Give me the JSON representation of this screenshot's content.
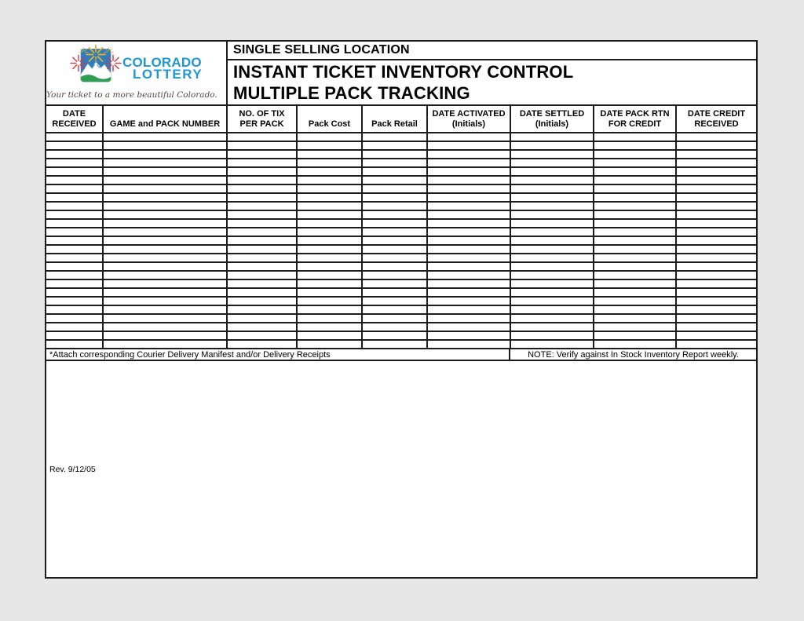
{
  "page": {
    "background_color": "#e7e7e7",
    "sheet_color": "#ffffff",
    "line_color": "#1c1c1c"
  },
  "logo": {
    "icon": "fireworks-mountain-icon",
    "wordmark_line1": "COLORADO",
    "wordmark_line2": "LOTTERY",
    "tagline": "Your ticket to a more beautiful Colorado.",
    "colors": {
      "wordmark_blue": "#1e97d4",
      "sky_blue": "#2d7dc1",
      "ground_green": "#2f9e53",
      "burst_yellow": "#f0ae1c",
      "burst_red": "#d9373c",
      "mountain_white": "#ffffff"
    }
  },
  "header": {
    "location_label": "SINGLE SELLING LOCATION",
    "title_line1": "INSTANT TICKET INVENTORY CONTROL",
    "title_line2": "MULTIPLE PACK TRACKING"
  },
  "table": {
    "columns": [
      {
        "id": "date-received",
        "line1": "DATE",
        "line2": "RECEIVED"
      },
      {
        "id": "game-pack-number",
        "line1": "GAME and PACK NUMBER"
      },
      {
        "id": "tix-per-pack",
        "line1": "NO. OF TIX",
        "line2": "PER PACK"
      },
      {
        "id": "pack-cost",
        "line1": "Pack Cost"
      },
      {
        "id": "pack-retail",
        "line1": "Pack Retail"
      },
      {
        "id": "date-activated",
        "line1": "DATE ACTIVATED",
        "line2": "(Initials)"
      },
      {
        "id": "date-settled",
        "line1": "DATE SETTLED",
        "line2": "(Initials)"
      },
      {
        "id": "date-pack-rtn",
        "line1": "DATE PACK RTN",
        "line2": "FOR CREDIT"
      },
      {
        "id": "date-credit",
        "line1": "DATE CREDIT",
        "line2": "RECEIVED"
      }
    ],
    "body_row_count": 25,
    "body_cells_empty": true
  },
  "footer": {
    "attach_note": "*Attach corresponding Courier Delivery Manifest and/or Delivery Receipts",
    "verify_note": "NOTE:  Verify against In Stock Inventory Report weekly.",
    "revision": "Rev. 9/12/05"
  }
}
